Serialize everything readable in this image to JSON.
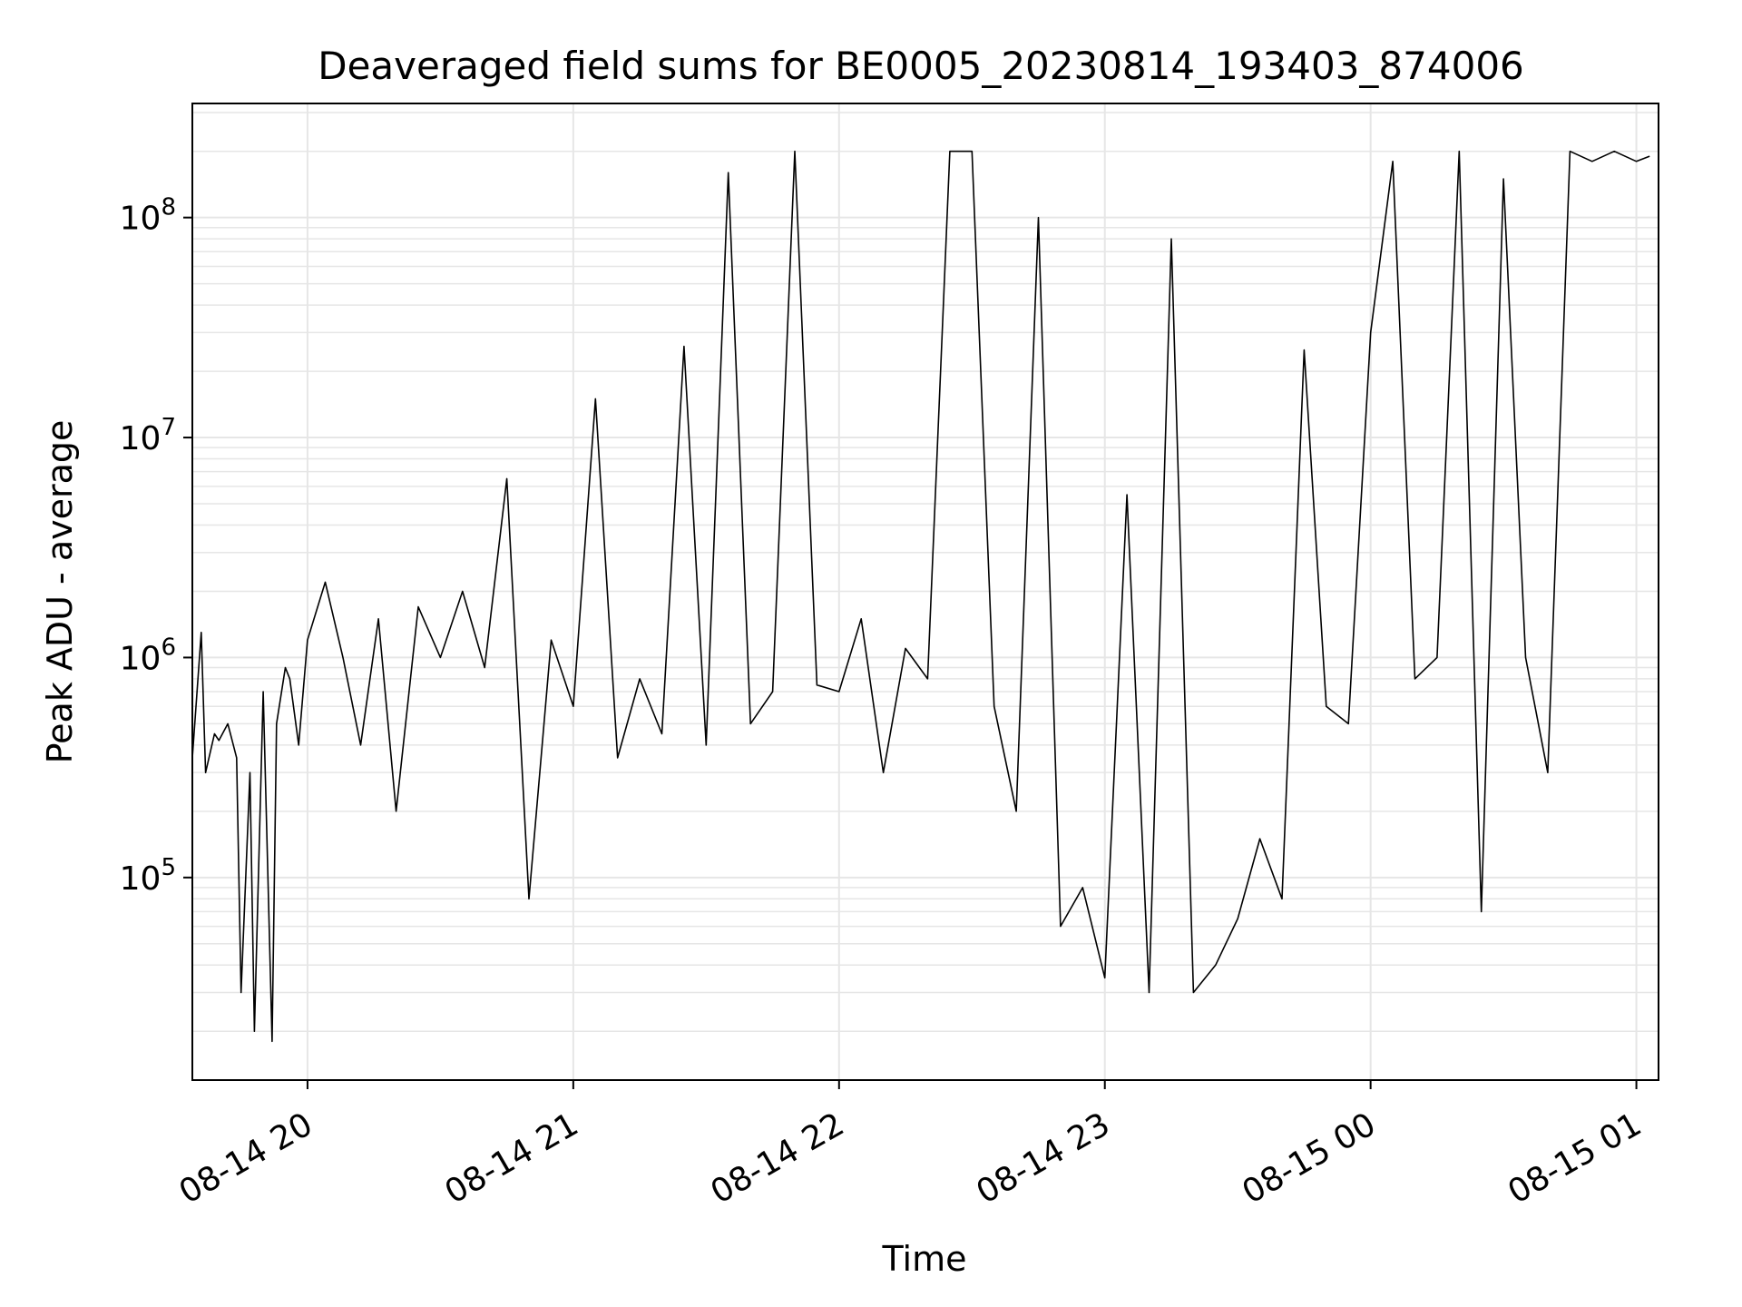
{
  "chart_data": {
    "type": "line",
    "title": "Deaveraged field sums for BE0005_20230814_193403_874006",
    "xlabel": "Time",
    "ylabel": "Peak ADU - average",
    "yscale": "log",
    "ylim": [
      12000,
      330000000
    ],
    "xlim": [
      "2023-08-14 19:34",
      "2023-08-15 01:05"
    ],
    "grid": true,
    "line_color": "#000000",
    "grid_color": "#e6e6e6",
    "x_ticks": [
      "08-14 20",
      "08-14 21",
      "08-14 22",
      "08-14 23",
      "08-15 00",
      "08-15 01"
    ],
    "x_tick_values": [
      "2023-08-14 20:00",
      "2023-08-14 21:00",
      "2023-08-14 22:00",
      "2023-08-14 23:00",
      "2023-08-15 00:00",
      "2023-08-15 01:00"
    ],
    "y_ticks": [
      {
        "base": "10",
        "exp": "5",
        "value": 100000
      },
      {
        "base": "10",
        "exp": "6",
        "value": 1000000
      },
      {
        "base": "10",
        "exp": "7",
        "value": 10000000
      },
      {
        "base": "10",
        "exp": "8",
        "value": 100000000
      }
    ],
    "series": [
      {
        "x": [
          "2023-08-14 19:34",
          "2023-08-14 19:36",
          "2023-08-14 19:37",
          "2023-08-14 19:39",
          "2023-08-14 19:40",
          "2023-08-14 19:42",
          "2023-08-14 19:44",
          "2023-08-14 19:45",
          "2023-08-14 19:47",
          "2023-08-14 19:48",
          "2023-08-14 19:50",
          "2023-08-14 19:52",
          "2023-08-14 19:53",
          "2023-08-14 19:55",
          "2023-08-14 19:56",
          "2023-08-14 19:58",
          "2023-08-14 20:00",
          "2023-08-14 20:04",
          "2023-08-14 20:08",
          "2023-08-14 20:12",
          "2023-08-14 20:16",
          "2023-08-14 20:20",
          "2023-08-14 20:25",
          "2023-08-14 20:30",
          "2023-08-14 20:35",
          "2023-08-14 20:40",
          "2023-08-14 20:45",
          "2023-08-14 20:50",
          "2023-08-14 20:55",
          "2023-08-14 21:00",
          "2023-08-14 21:05",
          "2023-08-14 21:10",
          "2023-08-14 21:15",
          "2023-08-14 21:20",
          "2023-08-14 21:25",
          "2023-08-14 21:30",
          "2023-08-14 21:35",
          "2023-08-14 21:40",
          "2023-08-14 21:45",
          "2023-08-14 21:50",
          "2023-08-14 21:55",
          "2023-08-14 22:00",
          "2023-08-14 22:05",
          "2023-08-14 22:10",
          "2023-08-14 22:15",
          "2023-08-14 22:20",
          "2023-08-14 22:25",
          "2023-08-14 22:30",
          "2023-08-14 22:35",
          "2023-08-14 22:40",
          "2023-08-14 22:45",
          "2023-08-14 22:50",
          "2023-08-14 22:55",
          "2023-08-14 23:00",
          "2023-08-14 23:05",
          "2023-08-14 23:10",
          "2023-08-14 23:15",
          "2023-08-14 23:20",
          "2023-08-14 23:25",
          "2023-08-14 23:30",
          "2023-08-14 23:35",
          "2023-08-14 23:40",
          "2023-08-14 23:45",
          "2023-08-14 23:50",
          "2023-08-14 23:55",
          "2023-08-15 00:00",
          "2023-08-15 00:05",
          "2023-08-15 00:10",
          "2023-08-15 00:15",
          "2023-08-15 00:20",
          "2023-08-15 00:25",
          "2023-08-15 00:30",
          "2023-08-15 00:35",
          "2023-08-15 00:40",
          "2023-08-15 00:45",
          "2023-08-15 00:50",
          "2023-08-15 00:55",
          "2023-08-15 01:00",
          "2023-08-15 01:03"
        ],
        "y": [
          350000,
          1300000,
          300000,
          450000,
          420000,
          500000,
          350000,
          30000,
          300000,
          20000,
          700000,
          18000,
          500000,
          900000,
          800000,
          400000,
          1200000,
          2200000,
          1000000,
          400000,
          1500000,
          200000,
          1700000,
          1000000,
          2000000,
          900000,
          6500000,
          80000,
          1200000,
          600000,
          15000000,
          350000,
          800000,
          450000,
          26000000,
          400000,
          160000000,
          500000,
          700000,
          200000000,
          750000,
          700000,
          1500000,
          300000,
          1100000,
          800000,
          200000000,
          200000000,
          600000,
          200000,
          100000000,
          60000,
          90000,
          35000,
          5500000,
          30000,
          80000000,
          30000,
          40000,
          65000,
          150000,
          80000,
          25000000,
          600000,
          500000,
          30000000,
          180000000,
          800000,
          1000000,
          200000000,
          70000,
          150000000,
          1000000,
          300000,
          200000000,
          180000000,
          200000000,
          180000000,
          190000000
        ]
      }
    ]
  }
}
